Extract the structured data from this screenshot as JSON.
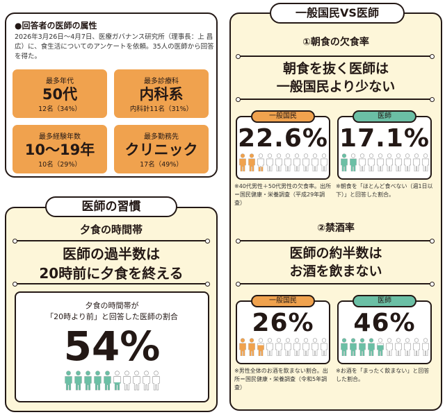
{
  "colors": {
    "orange": "#f0a24e",
    "teal": "#6bbfa5",
    "cream": "#fdf6d9",
    "ink": "#231815"
  },
  "attributes": {
    "title": "●回答者の医師の属性",
    "description": "2026年3月26日～4月7日、医療ガバナンス研究所（理事長：上 昌広）に、食生活についてのアンケートを依頼。35人の医師から回答を得た。",
    "tiles": [
      {
        "label": "最多年代",
        "value": "50代",
        "sub": "12名（34%）"
      },
      {
        "label": "最多診療科",
        "value": "内科系",
        "sub": "内科計11名（31%）"
      },
      {
        "label": "最多経験年数",
        "value": "10～19年",
        "sub": "10名（29%）"
      },
      {
        "label": "最多勤務先",
        "value": "クリニック",
        "sub": "17名（49%）"
      }
    ]
  },
  "habits": {
    "pill": "医師の習慣",
    "subtitle": "夕食の時間帯",
    "headline1": "医師の過半数は",
    "headline2": "20時前に夕食を終える",
    "box_line1": "夕食の時間帯が",
    "box_line2": "「20時より前」と回答した医師の割合",
    "value": "54%",
    "percent": 54,
    "icon": "person-icon"
  },
  "compare": {
    "pill": "一般国民VS医師",
    "sections": [
      {
        "subtitle": "①朝食の欠食率",
        "headline1": "朝食を抜く医師は",
        "headline2": "一般国民より少ない",
        "cards": [
          {
            "tag": "一般国民",
            "value": "22.6%",
            "percent": 22.6,
            "color": "orange",
            "note": "※40代男性＋50代男性の欠食率。出所＝国民健康・栄養調査（平成29年調査）"
          },
          {
            "tag": "医師",
            "value": "17.1%",
            "percent": 17.1,
            "color": "teal",
            "note": "※朝食を「ほとんど食べない（週1日以下）」と回答した割合。"
          }
        ]
      },
      {
        "subtitle": "②禁酒率",
        "headline1": "医師の約半数は",
        "headline2": "お酒を飲まない",
        "cards": [
          {
            "tag": "一般国民",
            "value": "26%",
            "percent": 26,
            "color": "orange",
            "note": "※男性全体のお酒を飲まない割合。出所＝国民健康・栄養調査（令和5年調査）"
          },
          {
            "tag": "医師",
            "value": "46%",
            "percent": 46,
            "color": "teal",
            "note": "※お酒を「まったく飲まない」と回答した割合。"
          }
        ]
      }
    ]
  }
}
